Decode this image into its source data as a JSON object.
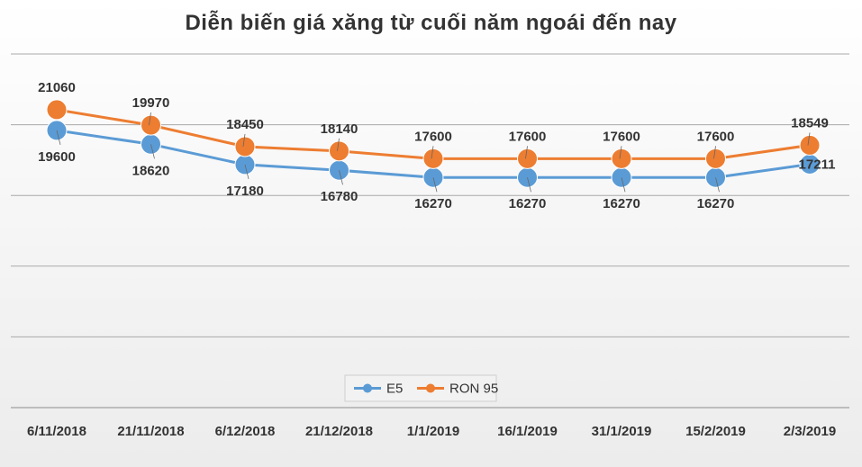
{
  "chart_data": {
    "type": "line",
    "title": "Diễn biến giá xăng từ cuối năm ngoái đến nay",
    "categories": [
      "6/11/2018",
      "21/11/2018",
      "6/12/2018",
      "21/12/2018",
      "1/1/2019",
      "16/1/2019",
      "31/1/2019",
      "15/2/2019",
      "2/3/2019"
    ],
    "series": [
      {
        "name": "E5",
        "color": "#5b9bd5",
        "values": [
          19600,
          18620,
          17180,
          16780,
          16270,
          16270,
          16270,
          16270,
          17211
        ]
      },
      {
        "name": "RON 95",
        "color": "#ed7d31",
        "values": [
          21060,
          19970,
          18450,
          18140,
          17600,
          17600,
          17600,
          17600,
          18549
        ]
      }
    ],
    "ylim": [
      0,
      25000
    ],
    "grid": true,
    "legend": "bottom-center"
  }
}
